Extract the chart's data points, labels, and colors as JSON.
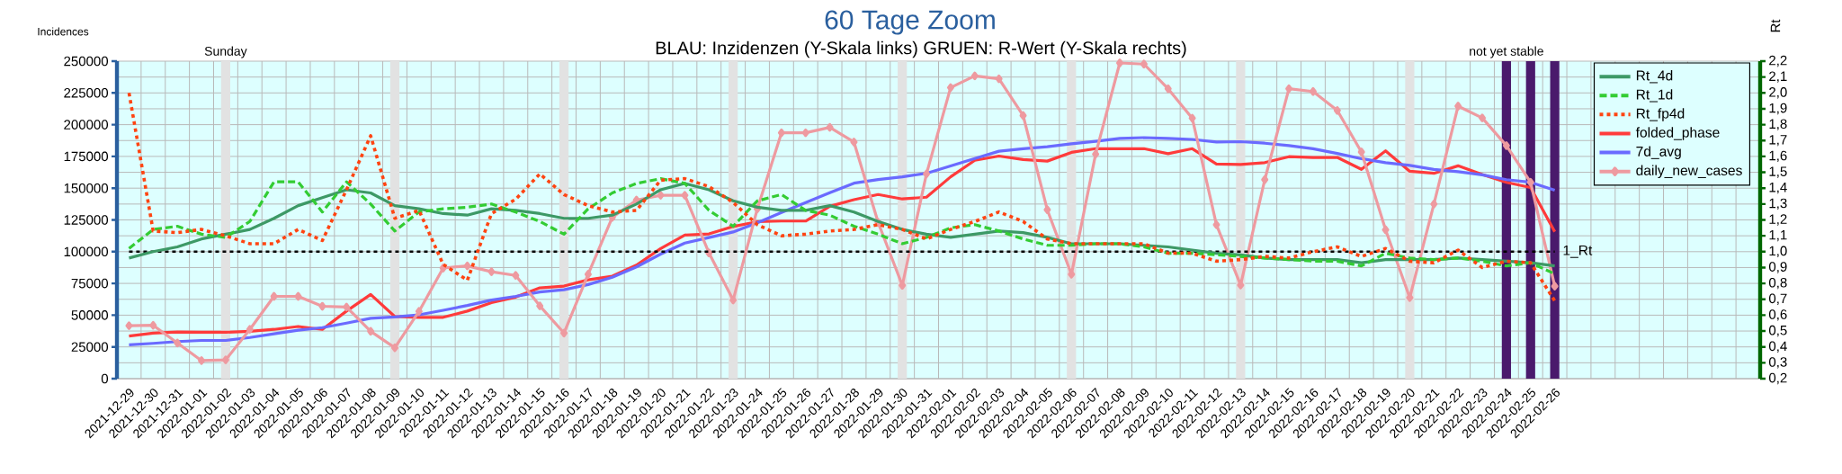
{
  "chart_data": {
    "type": "line",
    "title": "60 Tage Zoom",
    "subtitle": "BLAU: Inzidenzen (Y-Skala links)     GRUEN: R-Wert (Y-Skala rechts)",
    "ylabel": "Incidences",
    "y2label": "Rt",
    "categories": [
      "2021-12-29",
      "2021-12-30",
      "2021-12-31",
      "2022-01-01",
      "2022-01-02",
      "2022-01-03",
      "2022-01-04",
      "2022-01-05",
      "2022-01-06",
      "2022-01-07",
      "2022-01-08",
      "2022-01-09",
      "2022-01-10",
      "2022-01-11",
      "2022-01-12",
      "2022-01-13",
      "2022-01-14",
      "2022-01-15",
      "2022-01-16",
      "2022-01-17",
      "2022-01-18",
      "2022-01-19",
      "2022-01-20",
      "2022-01-21",
      "2022-01-22",
      "2022-01-23",
      "2022-01-24",
      "2022-01-25",
      "2022-01-26",
      "2022-01-27",
      "2022-01-28",
      "2022-01-29",
      "2022-01-30",
      "2022-01-31",
      "2022-02-01",
      "2022-02-02",
      "2022-02-03",
      "2022-02-04",
      "2022-02-05",
      "2022-02-06",
      "2022-02-07",
      "2022-02-08",
      "2022-02-09",
      "2022-02-10",
      "2022-02-11",
      "2022-02-12",
      "2022-02-13",
      "2022-02-14",
      "2022-02-15",
      "2022-02-16",
      "2022-02-17",
      "2022-02-18",
      "2022-02-19",
      "2022-02-20",
      "2022-02-21",
      "2022-02-22",
      "2022-02-23",
      "2022-02-24",
      "2022-02-25",
      "2022-02-26",
      null,
      null,
      null,
      null,
      null,
      null,
      null,
      null
    ],
    "series": [
      {
        "name": "Rt_4d",
        "color": "#3d9966",
        "axis": "y2",
        "line_style": "solid",
        "values": [
          0.96,
          1.0,
          1.03,
          1.08,
          1.11,
          1.14,
          1.21,
          1.29,
          1.34,
          1.39,
          1.37,
          1.29,
          1.27,
          1.24,
          1.23,
          1.27,
          1.26,
          1.24,
          1.21,
          1.21,
          1.23,
          1.3,
          1.39,
          1.43,
          1.39,
          1.32,
          1.28,
          1.26,
          1.26,
          1.29,
          1.25,
          1.19,
          1.14,
          1.11,
          1.09,
          1.11,
          1.13,
          1.12,
          1.09,
          1.05,
          1.05,
          1.05,
          1.04,
          1.03,
          1.01,
          0.99,
          0.98,
          0.96,
          0.95,
          0.95,
          0.95,
          0.93,
          0.95,
          0.95,
          0.95,
          0.96,
          0.95,
          0.94,
          0.93,
          0.91,
          null,
          null,
          null,
          null,
          null,
          null,
          null,
          null
        ]
      },
      {
        "name": "Rt_1d",
        "color": "#33cc33",
        "axis": "y2",
        "line_style": "dashed",
        "values": [
          1.02,
          1.14,
          1.16,
          1.11,
          1.09,
          1.19,
          1.44,
          1.44,
          1.25,
          1.44,
          1.3,
          1.13,
          1.25,
          1.27,
          1.28,
          1.3,
          1.25,
          1.19,
          1.11,
          1.27,
          1.37,
          1.43,
          1.46,
          1.43,
          1.26,
          1.16,
          1.32,
          1.36,
          1.26,
          1.23,
          1.16,
          1.11,
          1.05,
          1.09,
          1.15,
          1.17,
          1.13,
          1.08,
          1.04,
          1.04,
          1.05,
          1.05,
          1.03,
          0.99,
          0.99,
          0.98,
          0.97,
          0.96,
          0.95,
          0.94,
          0.94,
          0.91,
          0.99,
          0.96,
          0.95,
          0.96,
          0.94,
          0.91,
          0.93,
          0.86,
          null,
          null,
          null,
          null,
          null,
          null,
          null,
          null
        ]
      },
      {
        "name": "Rt_fp4d",
        "color": "#ff4411",
        "axis": "y2",
        "line_style": "dotted",
        "values": [
          2.0,
          1.13,
          1.12,
          1.14,
          1.1,
          1.05,
          1.05,
          1.14,
          1.07,
          1.39,
          1.73,
          1.21,
          1.26,
          0.92,
          0.82,
          1.24,
          1.33,
          1.49,
          1.36,
          1.29,
          1.25,
          1.26,
          1.45,
          1.46,
          1.41,
          1.31,
          1.17,
          1.1,
          1.11,
          1.13,
          1.14,
          1.17,
          1.14,
          1.08,
          1.14,
          1.19,
          1.25,
          1.19,
          1.08,
          1.05,
          1.05,
          1.05,
          1.05,
          0.99,
          0.99,
          0.94,
          0.95,
          0.97,
          0.96,
          1.0,
          1.03,
          0.97,
          1.02,
          0.94,
          0.93,
          1.01,
          0.9,
          0.94,
          0.93,
          0.69,
          null,
          null,
          null,
          null,
          null,
          null,
          null,
          null
        ]
      },
      {
        "name": "folded_phase",
        "color": "#ff3b3b",
        "axis": "y",
        "line_style": "solid",
        "values": [
          33600,
          35900,
          36700,
          36500,
          36500,
          37300,
          38800,
          41100,
          38800,
          53200,
          66300,
          48900,
          48300,
          48300,
          53200,
          59900,
          64200,
          71500,
          72900,
          77800,
          80700,
          89400,
          102400,
          113100,
          114000,
          119800,
          123600,
          124100,
          124100,
          135700,
          140900,
          145000,
          141500,
          142900,
          158900,
          171900,
          175300,
          172500,
          171300,
          178200,
          181100,
          181100,
          181100,
          177100,
          181100,
          169000,
          168600,
          170100,
          174800,
          174200,
          174200,
          164800,
          179400,
          163300,
          161700,
          167600,
          160800,
          154600,
          150500,
          115700,
          null,
          null,
          null,
          null,
          null,
          null,
          null,
          null
        ]
      },
      {
        "name": "7d_avg",
        "color": "#6a6aff",
        "axis": "y",
        "line_style": "solid",
        "values": [
          26600,
          27800,
          29200,
          30100,
          30100,
          32400,
          35300,
          38200,
          40200,
          43700,
          47500,
          48600,
          50300,
          53800,
          57600,
          61900,
          64800,
          68300,
          70000,
          74100,
          79900,
          88000,
          98100,
          106800,
          111100,
          115500,
          122700,
          130800,
          138600,
          146400,
          153900,
          156800,
          158900,
          161700,
          167500,
          173300,
          179100,
          181100,
          182600,
          184900,
          186900,
          189200,
          189800,
          189200,
          188400,
          186300,
          186600,
          185400,
          183500,
          181000,
          177300,
          173200,
          170100,
          167900,
          164800,
          163000,
          160500,
          156700,
          154600,
          148300,
          null,
          null,
          null,
          null,
          null,
          null,
          null,
          null
        ]
      },
      {
        "name": "daily_new_cases",
        "color": "#ee9aa0",
        "axis": "y",
        "line_style": "solid",
        "marker": "diamond",
        "values": [
          41700,
          42000,
          28100,
          14200,
          14800,
          38800,
          64800,
          64800,
          57000,
          56400,
          37300,
          24300,
          53000,
          87100,
          88800,
          84200,
          81300,
          57300,
          35900,
          82200,
          127000,
          140600,
          144400,
          144400,
          99000,
          61900,
          133700,
          193600,
          193600,
          197900,
          186300,
          123000,
          73500,
          161200,
          229200,
          238400,
          236100,
          207200,
          133000,
          82200,
          176800,
          248600,
          247700,
          228300,
          205100,
          121200,
          73700,
          156700,
          228300,
          226100,
          211200,
          178500,
          117200,
          63800,
          137500,
          214600,
          205300,
          183500,
          154600,
          72800,
          null,
          null,
          null,
          null,
          null,
          null,
          null,
          null
        ]
      }
    ],
    "ylim": [
      0,
      250000
    ],
    "yticks": [
      0,
      25000,
      50000,
      75000,
      100000,
      125000,
      150000,
      175000,
      200000,
      225000,
      250000
    ],
    "y2lim": [
      0.2,
      2.2
    ],
    "y2ticks": [
      {
        "value": 0.2,
        "label": "0,2"
      },
      {
        "value": 0.3,
        "label": "0,3"
      },
      {
        "value": 0.4,
        "label": "0,4"
      },
      {
        "value": 0.5,
        "label": "0,5"
      },
      {
        "value": 0.6,
        "label": "0,6"
      },
      {
        "value": 0.7,
        "label": "0,7"
      },
      {
        "value": 0.8,
        "label": "0,8"
      },
      {
        "value": 0.9,
        "label": "0,9"
      },
      {
        "value": 1.0,
        "label": "1,0"
      },
      {
        "value": 1.1,
        "label": "1,1"
      },
      {
        "value": 1.2,
        "label": "1,2"
      },
      {
        "value": 1.3,
        "label": "1,3"
      },
      {
        "value": 1.4,
        "label": "1,4"
      },
      {
        "value": 1.5,
        "label": "1,5"
      },
      {
        "value": 1.6,
        "label": "1,6"
      },
      {
        "value": 1.7,
        "label": "1,7"
      },
      {
        "value": 1.8,
        "label": "1,8"
      },
      {
        "value": 1.9,
        "label": "1,9"
      },
      {
        "value": 2.0,
        "label": "2,0"
      },
      {
        "value": 2.1,
        "label": "2,1"
      },
      {
        "value": 2.2,
        "label": "2,2"
      }
    ],
    "ref_lines": [
      {
        "axis": "y2",
        "value": 1.0,
        "label": "1_Rt",
        "color": "#000000",
        "line_style": "dotted"
      }
    ],
    "bands": [
      {
        "axis": "x",
        "from": "2022-02-24",
        "to": "2022-02-24",
        "label": "not yet stable",
        "color": "#4a1a6c"
      },
      {
        "axis": "x",
        "from": "2022-02-25",
        "to": "2022-02-25",
        "color": "#4a1a6c"
      },
      {
        "axis": "x",
        "from": "2022-02-26",
        "to": "2022-02-26",
        "color": "#4a1a6c"
      },
      {
        "axis": "x",
        "from": "2022-01-02",
        "to": "2022-01-02",
        "label": "Sunday",
        "color": "#e2e2e2"
      },
      {
        "axis": "x",
        "from": "2022-01-09",
        "to": "2022-01-09",
        "color": "#e2e2e2"
      },
      {
        "axis": "x",
        "from": "2022-01-16",
        "to": "2022-01-16",
        "color": "#e2e2e2"
      },
      {
        "axis": "x",
        "from": "2022-01-23",
        "to": "2022-01-23",
        "color": "#e2e2e2"
      },
      {
        "axis": "x",
        "from": "2022-01-30",
        "to": "2022-01-30",
        "color": "#e2e2e2"
      },
      {
        "axis": "x",
        "from": "2022-02-06",
        "to": "2022-02-06",
        "color": "#e2e2e2"
      },
      {
        "axis": "x",
        "from": "2022-02-13",
        "to": "2022-02-13",
        "color": "#e2e2e2"
      },
      {
        "axis": "x",
        "from": "2022-02-20",
        "to": "2022-02-20",
        "color": "#e2e2e2"
      }
    ],
    "grid": true,
    "legend": "top right"
  }
}
